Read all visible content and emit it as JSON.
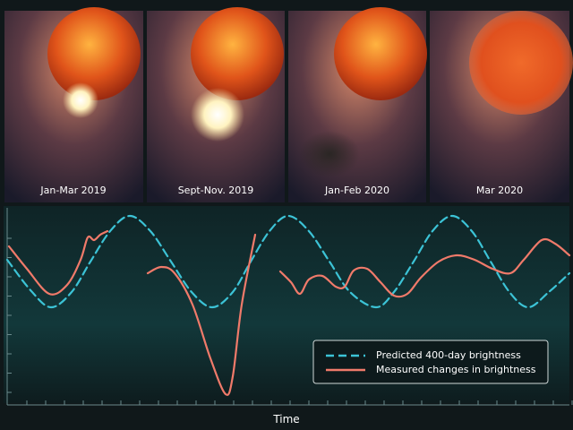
{
  "panels": [
    {
      "label": "Jan-Mar 2019"
    },
    {
      "label": "Sept-Nov. 2019"
    },
    {
      "label": "Jan-Feb 2020"
    },
    {
      "label": "Mar 2020"
    }
  ],
  "chart_data": {
    "type": "line",
    "x_label": "Time",
    "xlim": [
      0,
      628
    ],
    "ylim": [
      0,
      215
    ],
    "series": [
      {
        "name": "Predicted 400-day brightness",
        "color": "#3cc3d6",
        "dashed": true,
        "x": [
          0,
          27,
          49,
          72,
          93,
          115,
          137,
          160,
          183,
          206,
          229,
          252,
          272,
          293,
          314,
          337,
          360,
          383,
          412,
          432,
          454,
          475,
          497,
          519,
          540,
          561,
          582,
          605,
          628
        ],
        "values": [
          160,
          125,
          107,
          124,
          158,
          192,
          209,
          192,
          158,
          124,
          107,
          124,
          158,
          192,
          209,
          192,
          158,
          124,
          107,
          124,
          158,
          192,
          209,
          192,
          158,
          124,
          107,
          124,
          145
        ]
      },
      {
        "name": "Measured changes in brightness",
        "color": "#f07a6a",
        "dashed": false,
        "x": [
          2,
          22,
          47,
          67,
          82,
          90,
          97,
          104,
          112,
          null,
          157,
          172,
          187,
          207,
          227,
          244,
          252,
          262,
          277,
          null,
          305,
          317,
          327,
          337,
          352,
          367,
          377,
          387,
          402,
          417,
          432,
          447,
          462,
          482,
          502,
          522,
          542,
          562,
          577,
          597,
          612,
          628
        ],
        "values": [
          175,
          150,
          122,
          132,
          160,
          185,
          182,
          188,
          192,
          null,
          145,
          152,
          145,
          110,
          50,
          10,
          30,
          110,
          188,
          null,
          147,
          135,
          122,
          138,
          142,
          130,
          130,
          148,
          150,
          135,
          120,
          122,
          140,
          158,
          165,
          160,
          150,
          145,
          160,
          182,
          178,
          165
        ]
      }
    ]
  }
}
